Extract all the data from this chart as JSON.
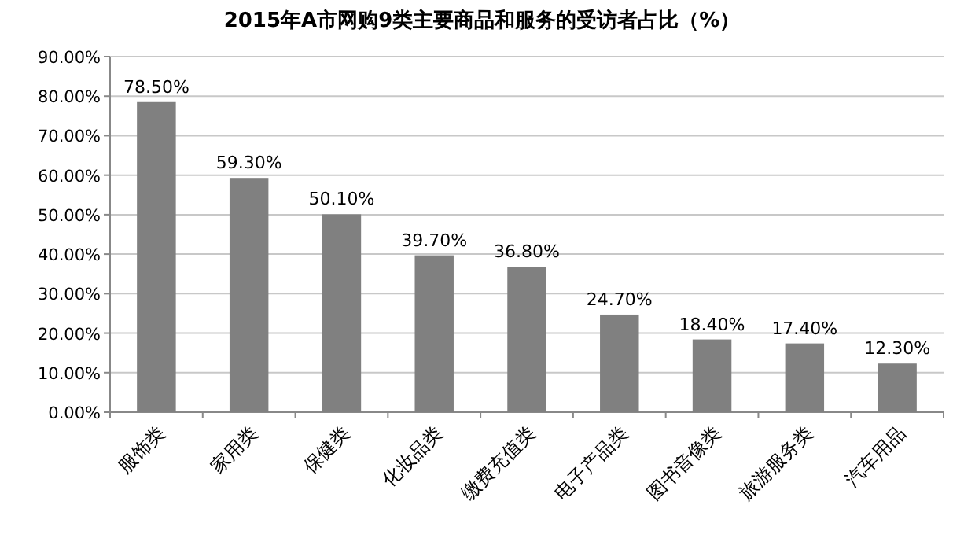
{
  "chart_data": {
    "type": "bar",
    "title": "2015年A市网购9类主要商品和服务的受访者占比（%）",
    "categories": [
      "服饰类",
      "家用类",
      "保健类",
      "化妆品类",
      "缴费充值类",
      "电子产品类",
      "图书音像类",
      "旅游服务类",
      "汽车用品"
    ],
    "values": [
      78.5,
      59.3,
      50.1,
      39.7,
      36.8,
      24.7,
      18.4,
      17.4,
      12.3
    ],
    "value_labels": [
      "78.50%",
      "59.30%",
      "50.10%",
      "39.70%",
      "36.80%",
      "24.70%",
      "18.40%",
      "17.40%",
      "12.30%"
    ],
    "color": "#808080",
    "ylim": [
      0,
      90
    ],
    "yticks": [
      {
        "value": 0,
        "label": "0.00%"
      },
      {
        "value": 10,
        "label": "10.00%"
      },
      {
        "value": 20,
        "label": "20.00%"
      },
      {
        "value": 30,
        "label": "30.00%"
      },
      {
        "value": 40,
        "label": "40.00%"
      },
      {
        "value": 50,
        "label": "50.00%"
      },
      {
        "value": 60,
        "label": "60.00%"
      },
      {
        "value": 70,
        "label": "70.00%"
      },
      {
        "value": 80,
        "label": "80.00%"
      },
      {
        "value": 90,
        "label": "90.00%"
      }
    ],
    "grid": "y"
  }
}
